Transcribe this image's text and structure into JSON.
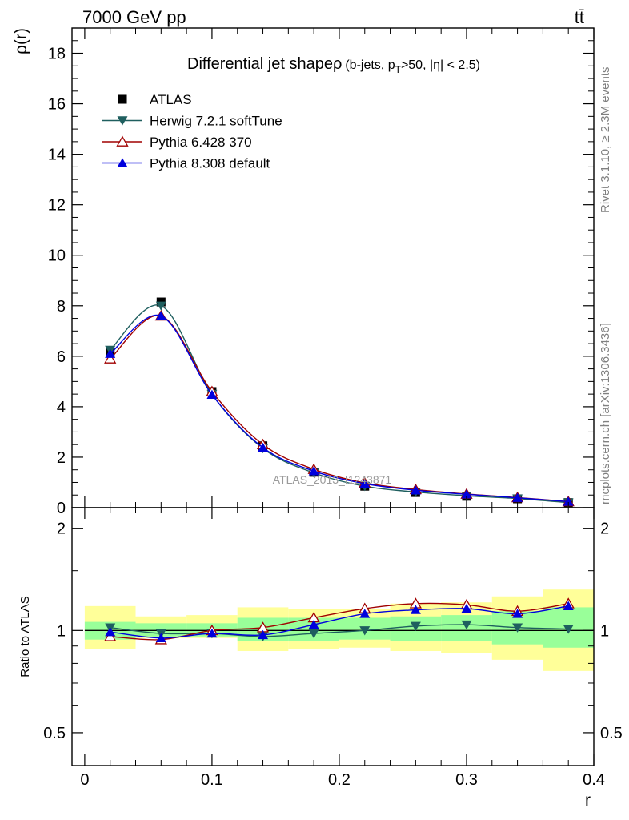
{
  "header": {
    "left": "7000 GeV pp",
    "right": "tt̄"
  },
  "side_labels": {
    "rivet": "Rivet 3.1.10, ≥ 2.3M events",
    "mcplots": "mcplots.cern.ch [arXiv:1306.3436]"
  },
  "watermark": "ATLAS_2013_I1243871",
  "colors": {
    "atlas": "#000000",
    "herwig": "#1f5f5f",
    "pythia6": "#a00000",
    "pythia8": "#0000dd",
    "band_outer": "#ffff99",
    "band_inner": "#99ff99"
  },
  "chart_data": [
    {
      "type": "line",
      "title_main": "Differential jet shapeρ",
      "title_sub_1": "(b-jets, p",
      "title_sub_sub": "T",
      "title_sub_2": ">50, |η| < 2.5)",
      "ylabel": "ρ(r)",
      "xlim": [
        -0.01,
        0.4
      ],
      "ylim": [
        0,
        19
      ],
      "y_ticks": [
        0,
        2,
        4,
        6,
        8,
        10,
        12,
        14,
        16,
        18
      ],
      "y_tick_labels": [
        "0",
        "2",
        "4",
        "6",
        "8",
        "10",
        "12",
        "14",
        "16",
        "18"
      ],
      "x": [
        0.02,
        0.06,
        0.1,
        0.14,
        0.18,
        0.22,
        0.26,
        0.3,
        0.34,
        0.38
      ],
      "bin_edges": [
        0,
        0.04,
        0.08,
        0.12,
        0.16,
        0.2,
        0.24,
        0.28,
        0.32,
        0.36,
        0.4
      ],
      "series": [
        {
          "name": "ATLAS",
          "key": "atlas",
          "marker": "square",
          "values": [
            6.15,
            8.15,
            4.6,
            2.45,
            1.4,
            0.85,
            0.6,
            0.45,
            0.35,
            0.2
          ]
        },
        {
          "name": "Herwig 7.2.1 softTune",
          "key": "herwig",
          "marker": "triangle-down",
          "values": [
            6.25,
            8.0,
            4.5,
            2.35,
            1.38,
            0.85,
            0.62,
            0.47,
            0.36,
            0.2
          ]
        },
        {
          "name": "Pythia 6.428 370",
          "key": "pythia6",
          "marker": "triangle-up-open",
          "values": [
            5.9,
            7.6,
            4.6,
            2.5,
            1.52,
            0.98,
            0.72,
            0.54,
            0.4,
            0.24
          ]
        },
        {
          "name": "Pythia 8.308 default",
          "key": "pythia8",
          "marker": "triangle-up",
          "values": [
            6.1,
            7.6,
            4.48,
            2.38,
            1.45,
            0.95,
            0.69,
            0.53,
            0.39,
            0.24
          ]
        }
      ]
    },
    {
      "type": "line",
      "ylabel": "Ratio to ATLAS",
      "xlabel": "r",
      "xlim": [
        -0.01,
        0.4
      ],
      "ylim": [
        0.4,
        2.3
      ],
      "y_scale": "log",
      "y_ticks": [
        0.5,
        1,
        2
      ],
      "y_tick_labels": [
        "0.5",
        "1",
        "2"
      ],
      "x_ticks": [
        0,
        0.1,
        0.2,
        0.3,
        0.4
      ],
      "x_tick_labels": [
        "0",
        "0.1",
        "0.2",
        "0.3",
        "0.4"
      ],
      "x": [
        0.02,
        0.06,
        0.1,
        0.14,
        0.18,
        0.22,
        0.26,
        0.3,
        0.34,
        0.38
      ],
      "bin_edges": [
        0,
        0.04,
        0.08,
        0.12,
        0.16,
        0.2,
        0.24,
        0.28,
        0.32,
        0.36,
        0.4
      ],
      "band_inner": [
        [
          0.94,
          1.06
        ],
        [
          0.96,
          1.05
        ],
        [
          0.96,
          1.05
        ],
        [
          0.93,
          1.09
        ],
        [
          0.93,
          1.09
        ],
        [
          0.94,
          1.09
        ],
        [
          0.93,
          1.1
        ],
        [
          0.93,
          1.11
        ],
        [
          0.91,
          1.14
        ],
        [
          0.89,
          1.17
        ]
      ],
      "band_outer": [
        [
          0.88,
          1.18
        ],
        [
          0.95,
          1.1
        ],
        [
          0.95,
          1.11
        ],
        [
          0.87,
          1.17
        ],
        [
          0.88,
          1.16
        ],
        [
          0.89,
          1.16
        ],
        [
          0.87,
          1.2
        ],
        [
          0.86,
          1.21
        ],
        [
          0.82,
          1.26
        ],
        [
          0.76,
          1.32
        ]
      ],
      "series": [
        {
          "name": "Herwig 7.2.1 softTune",
          "key": "herwig",
          "marker": "triangle-down",
          "values": [
            1.02,
            0.98,
            0.98,
            0.96,
            0.98,
            1.0,
            1.03,
            1.04,
            1.02,
            1.01
          ]
        },
        {
          "name": "Pythia 6.428 370",
          "key": "pythia6",
          "marker": "triangle-up-open",
          "values": [
            0.96,
            0.94,
            1.0,
            1.02,
            1.09,
            1.16,
            1.2,
            1.19,
            1.14,
            1.2
          ]
        },
        {
          "name": "Pythia 8.308 default",
          "key": "pythia8",
          "marker": "triangle-up",
          "values": [
            0.99,
            0.95,
            0.98,
            0.97,
            1.04,
            1.12,
            1.15,
            1.16,
            1.12,
            1.18
          ]
        }
      ]
    }
  ]
}
